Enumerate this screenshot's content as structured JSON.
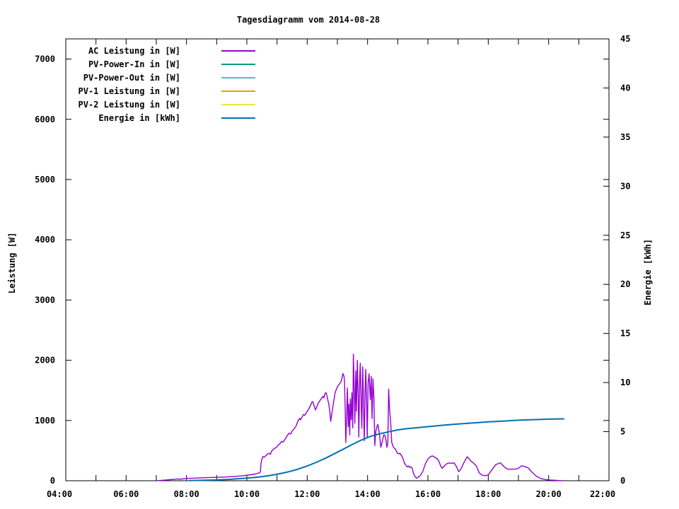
{
  "title": "Tagesdiagramm vom 2014-08-28",
  "chart_data": {
    "type": "line",
    "title": "Tagesdiagramm vom 2014-08-28",
    "xlabel": "",
    "ylabel": "Leistung [W]",
    "y2label": "Energie [kWh]",
    "xlim_hours": [
      4,
      22
    ],
    "x_tick_hours": [
      4,
      6,
      8,
      10,
      12,
      14,
      16,
      18,
      20,
      22
    ],
    "x_tick_labels": [
      "04:00",
      "06:00",
      "08:00",
      "10:00",
      "12:00",
      "14:00",
      "16:00",
      "18:00",
      "20:00",
      "22:00"
    ],
    "ylim": [
      0,
      7335
    ],
    "y_ticks": [
      0,
      1000,
      2000,
      3000,
      4000,
      5000,
      6000,
      7000
    ],
    "y2lim": [
      0,
      45
    ],
    "y2_ticks": [
      0,
      5,
      10,
      15,
      20,
      25,
      30,
      35,
      40,
      45
    ],
    "grid": false,
    "legend_position": "inside top-left",
    "axis_color": "#000000",
    "background": "#ffffff",
    "series": [
      {
        "name": "AC Leistung in [W]",
        "color": "#9400d3",
        "axis": "y",
        "points": [
          [
            7.05,
            2
          ],
          [
            7.13,
            5
          ],
          [
            7.3,
            10
          ],
          [
            7.45,
            18
          ],
          [
            7.62,
            25
          ],
          [
            7.72,
            30
          ],
          [
            7.78,
            22
          ],
          [
            7.85,
            28
          ],
          [
            7.95,
            34
          ],
          [
            8.1,
            40
          ],
          [
            8.35,
            45
          ],
          [
            8.6,
            50
          ],
          [
            8.9,
            55
          ],
          [
            9.17,
            60
          ],
          [
            9.4,
            66
          ],
          [
            9.6,
            72
          ],
          [
            9.8,
            80
          ],
          [
            10.0,
            92
          ],
          [
            10.15,
            100
          ],
          [
            10.28,
            112
          ],
          [
            10.4,
            128
          ],
          [
            10.45,
            145
          ],
          [
            10.47,
            300
          ],
          [
            10.5,
            355
          ],
          [
            10.53,
            400
          ],
          [
            10.58,
            390
          ],
          [
            10.65,
            425
          ],
          [
            10.72,
            455
          ],
          [
            10.78,
            440
          ],
          [
            10.82,
            490
          ],
          [
            10.88,
            525
          ],
          [
            10.95,
            545
          ],
          [
            11.0,
            565
          ],
          [
            11.05,
            600
          ],
          [
            11.1,
            615
          ],
          [
            11.15,
            655
          ],
          [
            11.2,
            640
          ],
          [
            11.27,
            690
          ],
          [
            11.33,
            740
          ],
          [
            11.4,
            790
          ],
          [
            11.45,
            775
          ],
          [
            11.5,
            825
          ],
          [
            11.57,
            865
          ],
          [
            11.63,
            905
          ],
          [
            11.7,
            1000
          ],
          [
            11.75,
            1035
          ],
          [
            11.78,
            1010
          ],
          [
            11.83,
            1060
          ],
          [
            11.88,
            1100
          ],
          [
            11.92,
            1085
          ],
          [
            11.97,
            1130
          ],
          [
            12.02,
            1165
          ],
          [
            12.07,
            1210
          ],
          [
            12.12,
            1260
          ],
          [
            12.15,
            1300
          ],
          [
            12.18,
            1315
          ],
          [
            12.22,
            1265
          ],
          [
            12.27,
            1175
          ],
          [
            12.32,
            1230
          ],
          [
            12.37,
            1290
          ],
          [
            12.42,
            1330
          ],
          [
            12.47,
            1365
          ],
          [
            12.52,
            1400
          ],
          [
            12.55,
            1375
          ],
          [
            12.58,
            1435
          ],
          [
            12.62,
            1465
          ],
          [
            12.65,
            1415
          ],
          [
            12.68,
            1350
          ],
          [
            12.72,
            1260
          ],
          [
            12.75,
            1150
          ],
          [
            12.78,
            985
          ],
          [
            12.82,
            1130
          ],
          [
            12.87,
            1290
          ],
          [
            12.92,
            1450
          ],
          [
            12.97,
            1525
          ],
          [
            13.02,
            1575
          ],
          [
            13.07,
            1605
          ],
          [
            13.12,
            1645
          ],
          [
            13.15,
            1695
          ],
          [
            13.18,
            1780
          ],
          [
            13.22,
            1735
          ],
          [
            13.24,
            1620
          ],
          [
            13.26,
            1150
          ],
          [
            13.28,
            635
          ],
          [
            13.31,
            1090
          ],
          [
            13.33,
            1540
          ],
          [
            13.36,
            895
          ],
          [
            13.38,
            1275
          ],
          [
            13.41,
            760
          ],
          [
            13.43,
            1360
          ],
          [
            13.46,
            1010
          ],
          [
            13.48,
            1460
          ],
          [
            13.51,
            875
          ],
          [
            13.53,
            2100
          ],
          [
            13.56,
            1490
          ],
          [
            13.58,
            955
          ],
          [
            13.61,
            1825
          ],
          [
            13.63,
            1150
          ],
          [
            13.66,
            1995
          ],
          [
            13.69,
            1395
          ],
          [
            13.71,
            725
          ],
          [
            13.74,
            1705
          ],
          [
            13.76,
            1950
          ],
          [
            13.79,
            1245
          ],
          [
            13.81,
            870
          ],
          [
            13.84,
            1890
          ],
          [
            13.86,
            1475
          ],
          [
            13.89,
            665
          ],
          [
            13.92,
            1515
          ],
          [
            13.94,
            1850
          ],
          [
            13.97,
            1285
          ],
          [
            13.99,
            715
          ],
          [
            14.02,
            1640
          ],
          [
            14.05,
            1775
          ],
          [
            14.09,
            1345
          ],
          [
            14.12,
            1730
          ],
          [
            14.15,
            1030
          ],
          [
            14.18,
            1690
          ],
          [
            14.21,
            1390
          ],
          [
            14.24,
            585
          ],
          [
            14.27,
            815
          ],
          [
            14.31,
            895
          ],
          [
            14.34,
            935
          ],
          [
            14.38,
            815
          ],
          [
            14.41,
            695
          ],
          [
            14.44,
            555
          ],
          [
            14.48,
            635
          ],
          [
            14.51,
            700
          ],
          [
            14.54,
            765
          ],
          [
            14.58,
            745
          ],
          [
            14.61,
            675
          ],
          [
            14.64,
            555
          ],
          [
            14.67,
            620
          ],
          [
            14.7,
            1520
          ],
          [
            14.73,
            1180
          ],
          [
            14.77,
            940
          ],
          [
            14.8,
            640
          ],
          [
            14.84,
            575
          ],
          [
            14.88,
            545
          ],
          [
            14.93,
            520
          ],
          [
            14.98,
            465
          ],
          [
            15.03,
            445
          ],
          [
            15.07,
            455
          ],
          [
            15.12,
            420
          ],
          [
            15.17,
            375
          ],
          [
            15.22,
            295
          ],
          [
            15.27,
            255
          ],
          [
            15.32,
            230
          ],
          [
            15.36,
            245
          ],
          [
            15.4,
            218
          ],
          [
            15.44,
            232
          ],
          [
            15.48,
            205
          ],
          [
            15.52,
            125
          ],
          [
            15.57,
            70
          ],
          [
            15.63,
            40
          ],
          [
            15.68,
            60
          ],
          [
            15.75,
            85
          ],
          [
            15.83,
            155
          ],
          [
            15.92,
            285
          ],
          [
            16.0,
            360
          ],
          [
            16.08,
            400
          ],
          [
            16.15,
            412
          ],
          [
            16.22,
            392
          ],
          [
            16.3,
            368
          ],
          [
            16.36,
            328
          ],
          [
            16.42,
            248
          ],
          [
            16.47,
            205
          ],
          [
            16.55,
            248
          ],
          [
            16.62,
            282
          ],
          [
            16.7,
            296
          ],
          [
            16.78,
            288
          ],
          [
            16.87,
            296
          ],
          [
            16.95,
            232
          ],
          [
            17.02,
            148
          ],
          [
            17.1,
            198
          ],
          [
            17.2,
            308
          ],
          [
            17.3,
            398
          ],
          [
            17.36,
            368
          ],
          [
            17.42,
            330
          ],
          [
            17.5,
            298
          ],
          [
            17.6,
            248
          ],
          [
            17.7,
            132
          ],
          [
            17.8,
            92
          ],
          [
            17.9,
            85
          ],
          [
            18.0,
            96
          ],
          [
            18.1,
            168
          ],
          [
            18.25,
            268
          ],
          [
            18.4,
            298
          ],
          [
            18.52,
            235
          ],
          [
            18.62,
            196
          ],
          [
            18.75,
            190
          ],
          [
            18.9,
            192
          ],
          [
            19.0,
            205
          ],
          [
            19.1,
            248
          ],
          [
            19.2,
            238
          ],
          [
            19.32,
            212
          ],
          [
            19.45,
            142
          ],
          [
            19.6,
            72
          ],
          [
            19.75,
            34
          ],
          [
            19.9,
            18
          ],
          [
            20.05,
            12
          ],
          [
            20.2,
            8
          ],
          [
            20.33,
            4
          ],
          [
            20.45,
            0
          ]
        ]
      },
      {
        "name": "PV-Power-In in [W]",
        "color": "#009e73",
        "axis": "y",
        "points": []
      },
      {
        "name": "PV-Power-Out in [W]",
        "color": "#56b4e9",
        "axis": "y",
        "points": []
      },
      {
        "name": "PV-1 Leistung in [W]",
        "color": "#e69f00",
        "axis": "y",
        "points": []
      },
      {
        "name": "PV-2 Leistung in [W]",
        "color": "#f0e442",
        "axis": "y",
        "points": []
      },
      {
        "name": "Energie in [kWh]",
        "color": "#0072b2",
        "axis": "y2",
        "points": [
          [
            8.1,
            0.02
          ],
          [
            8.2,
            0.03
          ],
          [
            8.6,
            0.05
          ],
          [
            9.0,
            0.08
          ],
          [
            9.4,
            0.14
          ],
          [
            9.8,
            0.22
          ],
          [
            10.2,
            0.32
          ],
          [
            10.5,
            0.42
          ],
          [
            10.8,
            0.55
          ],
          [
            11.1,
            0.72
          ],
          [
            11.4,
            0.92
          ],
          [
            11.7,
            1.18
          ],
          [
            12.0,
            1.5
          ],
          [
            12.3,
            1.87
          ],
          [
            12.6,
            2.28
          ],
          [
            12.9,
            2.75
          ],
          [
            13.2,
            3.22
          ],
          [
            13.5,
            3.7
          ],
          [
            13.8,
            4.15
          ],
          [
            14.1,
            4.52
          ],
          [
            14.4,
            4.78
          ],
          [
            14.7,
            4.98
          ],
          [
            15.0,
            5.18
          ],
          [
            15.3,
            5.3
          ],
          [
            15.7,
            5.42
          ],
          [
            16.1,
            5.54
          ],
          [
            16.5,
            5.65
          ],
          [
            17.0,
            5.78
          ],
          [
            17.5,
            5.89
          ],
          [
            18.0,
            5.99
          ],
          [
            18.5,
            6.08
          ],
          [
            19.0,
            6.16
          ],
          [
            19.5,
            6.22
          ],
          [
            20.0,
            6.27
          ],
          [
            20.3,
            6.29
          ],
          [
            20.5,
            6.3
          ]
        ]
      }
    ]
  }
}
